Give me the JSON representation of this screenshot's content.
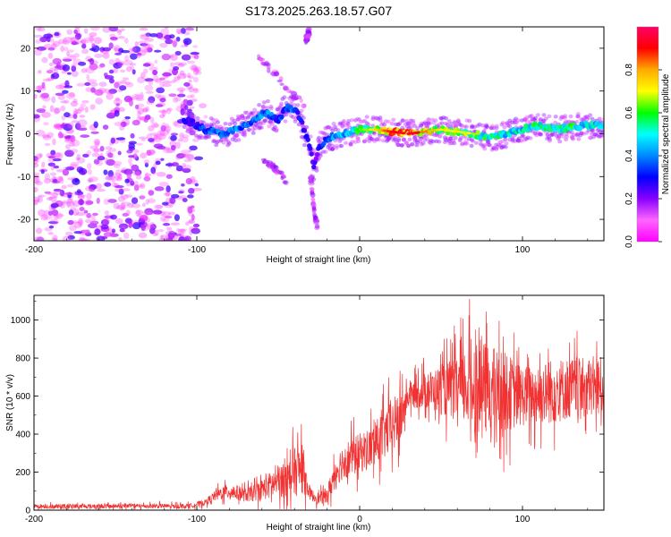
{
  "title": "S173.2025.263.18.57.G07",
  "chart_data": [
    {
      "type": "heatmap",
      "xlabel": "Height of straight line (km)",
      "ylabel": "Frequency (Hz)",
      "xlim": [
        -200,
        150
      ],
      "ylim": [
        -25,
        25
      ],
      "xticks": [
        -200,
        -100,
        0,
        100
      ],
      "yticks": [
        20,
        10,
        0,
        -10,
        -20
      ],
      "colorbar": {
        "label": "Normalized spectral amplitude",
        "range": [
          0,
          1
        ],
        "ticks": [
          "0.8",
          "0.6",
          "0.4",
          "0.2",
          "0.0"
        ],
        "tick_values": [
          0.8,
          0.6,
          0.4,
          0.2,
          0.0
        ],
        "colors": [
          "#ff00ff",
          "#ff66ff",
          "#8800ff",
          "#0000ff",
          "#0088ff",
          "#00ffff",
          "#00ff00",
          "#ffff00",
          "#ffaa00",
          "#ff0000",
          "#ff0066"
        ]
      },
      "ridge": {
        "x": [
          -105,
          -95,
          -85,
          -75,
          -65,
          -58,
          -50,
          -45,
          -40,
          -35,
          -30,
          -28,
          -25,
          -20,
          -10,
          0,
          10,
          20,
          30,
          40,
          50,
          60,
          70,
          80,
          90,
          100,
          110,
          120,
          130,
          140,
          150
        ],
        "y": [
          3,
          1,
          0,
          1,
          3,
          5,
          3,
          6,
          6,
          2,
          -4,
          -8,
          -3,
          -1,
          0,
          1,
          1,
          0.5,
          0,
          0.5,
          1,
          0.5,
          0,
          -1,
          0,
          1,
          2,
          1,
          1.5,
          2,
          2
        ],
        "amplitude": [
          0.3,
          0.4,
          0.45,
          0.45,
          0.4,
          0.45,
          0.35,
          0.4,
          0.4,
          0.3,
          0.3,
          0.25,
          0.3,
          0.4,
          0.5,
          0.6,
          0.7,
          0.9,
          0.95,
          0.8,
          0.7,
          0.7,
          0.65,
          0.6,
          0.55,
          0.55,
          0.6,
          0.6,
          0.6,
          0.55,
          0.5
        ]
      },
      "noise_region_km": [
        -200,
        -100
      ]
    },
    {
      "type": "line",
      "xlabel": "Height of straight line (km)",
      "ylabel": "SNR (10 * v/v)",
      "xlim": [
        -200,
        150
      ],
      "ylim": [
        0,
        1130
      ],
      "xticks": [
        -200,
        -100,
        0,
        100
      ],
      "yticks": [
        0,
        200,
        400,
        600,
        800,
        1000
      ],
      "color": "#f03232",
      "envelope": {
        "x": [
          -200,
          -105,
          -95,
          -90,
          -85,
          -80,
          -75,
          -70,
          -65,
          -60,
          -55,
          -50,
          -45,
          -40,
          -35,
          -32,
          -30,
          -25,
          -20,
          -18,
          -15,
          -10,
          -5,
          0,
          5,
          10,
          15,
          20,
          25,
          28,
          30,
          40,
          50,
          60,
          70,
          80,
          90,
          100,
          110,
          120,
          130,
          140,
          150
        ],
        "mean": [
          20,
          22,
          40,
          70,
          90,
          100,
          90,
          80,
          90,
          110,
          130,
          150,
          180,
          200,
          220,
          120,
          80,
          60,
          80,
          120,
          200,
          260,
          280,
          300,
          320,
          350,
          400,
          440,
          480,
          560,
          600,
          630,
          630,
          640,
          660,
          630,
          620,
          600,
          610,
          630,
          640,
          640,
          650
        ],
        "spread": [
          15,
          15,
          20,
          30,
          45,
          50,
          50,
          45,
          55,
          70,
          90,
          110,
          130,
          160,
          170,
          60,
          40,
          40,
          50,
          80,
          100,
          120,
          130,
          130,
          140,
          150,
          170,
          180,
          200,
          100,
          80,
          120,
          160,
          220,
          320,
          300,
          260,
          200,
          200,
          220,
          200,
          200,
          200
        ]
      }
    }
  ]
}
